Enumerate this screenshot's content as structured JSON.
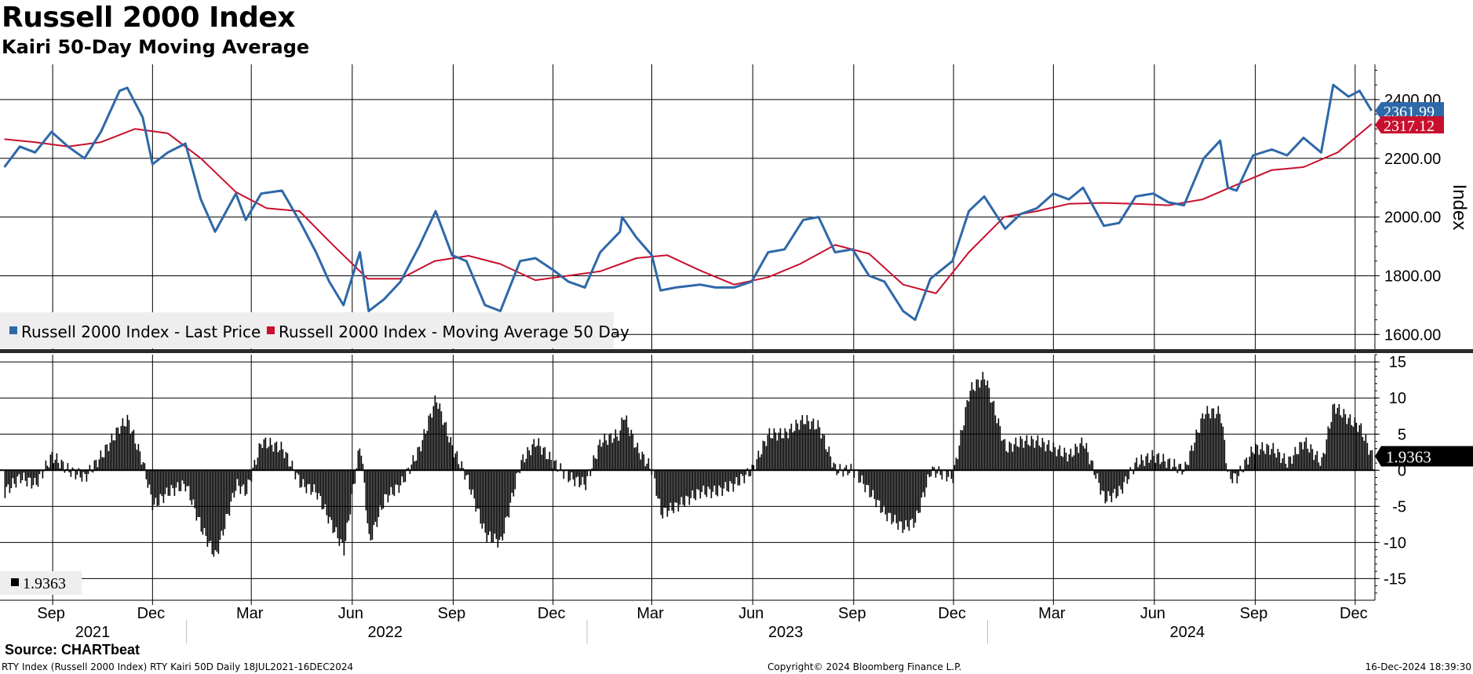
{
  "title": "Russell 2000 Index",
  "subtitle": "Kairi 50-Day Moving Average",
  "source": "Source: CHARTbeat",
  "footer": {
    "left": "RTY Index (Russell 2000 Index) RTY Kairi 50D  Daily 18JUL2021-16DEC2024",
    "center": "Copyright© 2024 Bloomberg Finance L.P.",
    "right": "16-Dec-2024 18:39:30"
  },
  "colors": {
    "price": "#2e68a8",
    "ma": "#c8102e",
    "bar": "#000000",
    "grid": "#000000"
  },
  "chart_data": [
    {
      "type": "line",
      "title": "",
      "ylabel": "Index",
      "ylim": [
        1550,
        2520
      ],
      "yticks": [
        "1600.00",
        "1800.00",
        "2000.00",
        "2200.00",
        "2400.00"
      ],
      "legend": {
        "placement": "bottom-left",
        "entries": [
          "Russell 2000 Index - Last Price",
          "Russell 2000 Index - Moving Average 50 Day"
        ]
      },
      "last_value_tags": [
        "2361.99",
        "2317.12"
      ],
      "x_axis": {
        "month_ticks": [
          "Sep",
          "Dec",
          "Mar",
          "Jun",
          "Sep",
          "Dec",
          "Mar",
          "Jun",
          "Sep",
          "Dec",
          "Mar",
          "Jun",
          "Sep",
          "Dec"
        ],
        "year_labels": [
          "2021",
          "2022",
          "2023",
          "2024"
        ]
      },
      "series": [
        {
          "name": "Russell 2000 Index - Last Price",
          "x": [
            "2021-07-19",
            "2021-08-02",
            "2021-08-16",
            "2021-08-31",
            "2021-09-15",
            "2021-09-30",
            "2021-10-15",
            "2021-11-01",
            "2021-11-08",
            "2021-11-22",
            "2021-12-01",
            "2021-12-15",
            "2021-12-31",
            "2022-01-14",
            "2022-01-27",
            "2022-02-15",
            "2022-02-24",
            "2022-03-10",
            "2022-03-29",
            "2022-04-15",
            "2022-04-29",
            "2022-05-11",
            "2022-05-24",
            "2022-06-08",
            "2022-06-16",
            "2022-06-30",
            "2022-07-15",
            "2022-08-01",
            "2022-08-16",
            "2022-08-31",
            "2022-09-13",
            "2022-09-30",
            "2022-10-14",
            "2022-11-01",
            "2022-11-15",
            "2022-12-01",
            "2022-12-15",
            "2022-12-30",
            "2023-01-13",
            "2023-01-31",
            "2023-02-02",
            "2023-02-15",
            "2023-03-01",
            "2023-03-09",
            "2023-03-23",
            "2023-04-14",
            "2023-04-28",
            "2023-05-15",
            "2023-05-31",
            "2023-06-15",
            "2023-06-30",
            "2023-07-17",
            "2023-07-31",
            "2023-08-15",
            "2023-08-31",
            "2023-09-15",
            "2023-09-29",
            "2023-10-16",
            "2023-10-27",
            "2023-11-10",
            "2023-11-30",
            "2023-12-15",
            "2023-12-29",
            "2024-01-17",
            "2024-01-31",
            "2024-02-15",
            "2024-03-01",
            "2024-03-15",
            "2024-03-28",
            "2024-04-16",
            "2024-04-30",
            "2024-05-15",
            "2024-05-31",
            "2024-06-14",
            "2024-06-28",
            "2024-07-16",
            "2024-07-31",
            "2024-08-07",
            "2024-08-15",
            "2024-08-30",
            "2024-09-16",
            "2024-09-30",
            "2024-10-15",
            "2024-10-31",
            "2024-11-11",
            "2024-11-25",
            "2024-12-05",
            "2024-12-16"
          ],
          "values": [
            2170,
            2240,
            2220,
            2290,
            2240,
            2200,
            2290,
            2430,
            2440,
            2340,
            2180,
            2220,
            2250,
            2060,
            1950,
            2080,
            1990,
            2080,
            2090,
            1980,
            1880,
            1780,
            1700,
            1880,
            1680,
            1720,
            1780,
            1900,
            2020,
            1870,
            1850,
            1700,
            1680,
            1850,
            1860,
            1820,
            1780,
            1760,
            1880,
            1950,
            2000,
            1930,
            1870,
            1750,
            1760,
            1770,
            1760,
            1760,
            1780,
            1880,
            1890,
            1990,
            2000,
            1880,
            1890,
            1800,
            1780,
            1680,
            1650,
            1790,
            1850,
            2020,
            2070,
            1960,
            2010,
            2030,
            2080,
            2060,
            2100,
            1970,
            1980,
            2070,
            2080,
            2050,
            2040,
            2200,
            2260,
            2100,
            2090,
            2210,
            2230,
            2210,
            2270,
            2220,
            2450,
            2410,
            2430,
            2362
          ]
        },
        {
          "name": "Russell 2000 Index - Moving Average 50 Day",
          "x": [
            "2021-07-19",
            "2021-08-16",
            "2021-09-15",
            "2021-10-15",
            "2021-11-15",
            "2021-12-15",
            "2022-01-14",
            "2022-02-15",
            "2022-03-15",
            "2022-04-14",
            "2022-05-13",
            "2022-06-15",
            "2022-07-15",
            "2022-08-15",
            "2022-09-15",
            "2022-10-14",
            "2022-11-15",
            "2022-12-15",
            "2023-01-13",
            "2023-02-15",
            "2023-03-15",
            "2023-04-14",
            "2023-05-15",
            "2023-06-15",
            "2023-07-14",
            "2023-08-15",
            "2023-09-15",
            "2023-10-16",
            "2023-11-15",
            "2023-12-15",
            "2024-01-16",
            "2024-02-15",
            "2024-03-15",
            "2024-04-15",
            "2024-05-15",
            "2024-06-14",
            "2024-07-15",
            "2024-08-15",
            "2024-09-16",
            "2024-10-15",
            "2024-11-15",
            "2024-12-16"
          ],
          "values": [
            2265,
            2255,
            2240,
            2255,
            2300,
            2285,
            2200,
            2085,
            2030,
            2020,
            1910,
            1790,
            1790,
            1850,
            1868,
            1840,
            1785,
            1800,
            1815,
            1860,
            1870,
            1818,
            1770,
            1795,
            1840,
            1905,
            1875,
            1770,
            1740,
            1880,
            2000,
            2020,
            2045,
            2048,
            2045,
            2040,
            2060,
            2110,
            2160,
            2170,
            2220,
            2317
          ]
        }
      ]
    },
    {
      "type": "bar",
      "title": "",
      "ylabel": "",
      "ylim": [
        -18,
        16
      ],
      "yticks": [
        "-15",
        "-10",
        "-5",
        "0",
        "5",
        "10",
        "15"
      ],
      "legend": {
        "placement": "bottom-left",
        "entries": [
          "1.9363"
        ]
      },
      "last_value_tags": [
        "1.9363"
      ],
      "series": [
        {
          "name": "Kairi 50D",
          "x": [
            "2021-07-19",
            "2021-08-02",
            "2021-08-16",
            "2021-08-31",
            "2021-09-15",
            "2021-09-30",
            "2021-10-15",
            "2021-11-01",
            "2021-11-08",
            "2021-11-22",
            "2021-12-01",
            "2021-12-15",
            "2021-12-31",
            "2022-01-14",
            "2022-01-27",
            "2022-02-15",
            "2022-02-24",
            "2022-03-10",
            "2022-03-29",
            "2022-04-15",
            "2022-04-29",
            "2022-05-11",
            "2022-05-24",
            "2022-06-08",
            "2022-06-16",
            "2022-06-30",
            "2022-07-15",
            "2022-08-01",
            "2022-08-16",
            "2022-08-31",
            "2022-09-13",
            "2022-09-30",
            "2022-10-14",
            "2022-11-01",
            "2022-11-15",
            "2022-12-01",
            "2022-12-15",
            "2022-12-30",
            "2023-01-13",
            "2023-01-31",
            "2023-02-02",
            "2023-02-15",
            "2023-03-01",
            "2023-03-09",
            "2023-03-23",
            "2023-04-14",
            "2023-04-28",
            "2023-05-15",
            "2023-05-31",
            "2023-06-15",
            "2023-06-30",
            "2023-07-17",
            "2023-07-31",
            "2023-08-15",
            "2023-08-31",
            "2023-09-15",
            "2023-09-29",
            "2023-10-16",
            "2023-10-27",
            "2023-11-10",
            "2023-11-30",
            "2023-12-15",
            "2023-12-29",
            "2024-01-17",
            "2024-01-31",
            "2024-02-15",
            "2024-03-01",
            "2024-03-15",
            "2024-03-28",
            "2024-04-16",
            "2024-04-30",
            "2024-05-15",
            "2024-05-31",
            "2024-06-14",
            "2024-06-28",
            "2024-07-16",
            "2024-07-31",
            "2024-08-07",
            "2024-08-15",
            "2024-08-30",
            "2024-09-16",
            "2024-09-30",
            "2024-10-15",
            "2024-10-31",
            "2024-11-11",
            "2024-11-25",
            "2024-12-05",
            "2024-12-16"
          ],
          "values": [
            -3,
            -1,
            -2,
            2,
            0,
            -1,
            2,
            6,
            7,
            1,
            -5,
            -3,
            -2,
            -8,
            -12,
            -2,
            -3,
            4,
            3,
            -2,
            -3,
            -7,
            -11,
            4,
            -10,
            -4,
            -2,
            3,
            10,
            3,
            -1,
            -9,
            -10,
            1,
            4,
            1,
            -1,
            -2,
            4,
            5,
            8,
            3,
            0,
            -6,
            -5,
            -3,
            -3,
            -2,
            0,
            5,
            5,
            7,
            6,
            0,
            0,
            -3,
            -6,
            -8,
            -7,
            0,
            -1,
            11,
            13,
            3,
            4,
            4,
            3,
            2,
            4,
            -4,
            -3,
            1,
            2,
            1,
            0,
            8,
            8,
            -1,
            -1,
            3,
            3,
            1,
            4,
            1,
            9,
            7,
            6,
            1.9363
          ]
        }
      ]
    }
  ]
}
